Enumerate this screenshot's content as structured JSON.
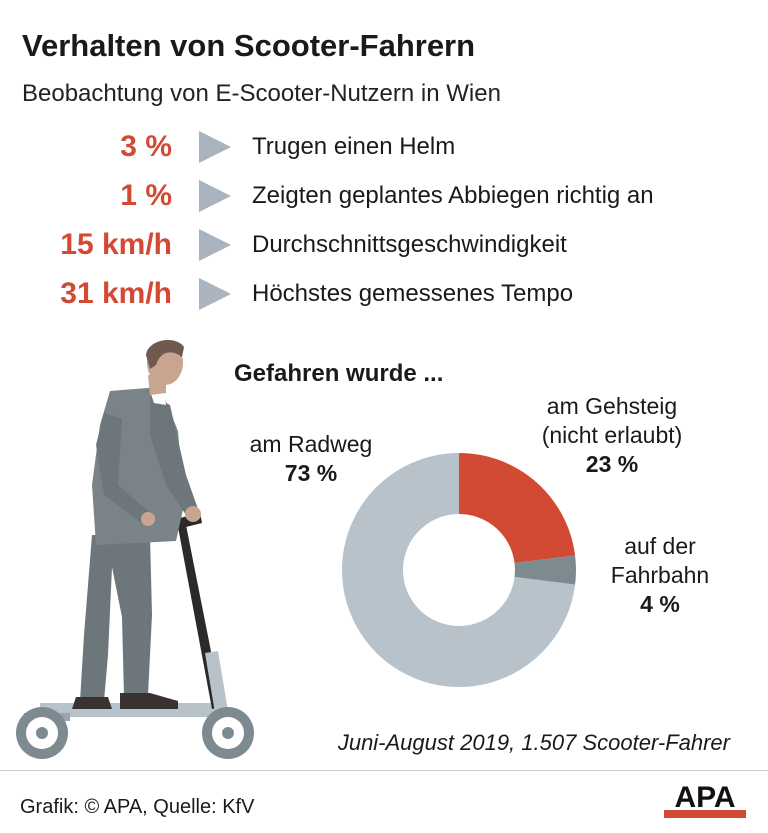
{
  "title": "Verhalten von Scooter-Fahrern",
  "subtitle": "Beobachtung von E-Scooter-Nutzern in Wien",
  "stats": [
    {
      "value": "3 %",
      "label": "Trugen einen Helm"
    },
    {
      "value": "1 %",
      "label": "Zeigten geplantes Abbiegen richtig an"
    },
    {
      "value": "15 km/h",
      "label": "Durchschnittsgeschwindigkeit"
    },
    {
      "value": "31 km/h",
      "label": "Höchstes gemessenes Tempo"
    }
  ],
  "chart_data": {
    "type": "pie",
    "title": "Gefahren wurde ...",
    "slices": [
      {
        "label_lines": [
          "am Gehsteig",
          "(nicht erlaubt)"
        ],
        "value": 23,
        "value_label": "23 %",
        "color": "#d24a33"
      },
      {
        "label_lines": [
          "auf der",
          "Fahrbahn"
        ],
        "value": 4,
        "value_label": "4 %",
        "color": "#7d8a8f"
      },
      {
        "label_lines": [
          "am Radweg"
        ],
        "value": 73,
        "value_label": "73 %",
        "color": "#b8c2ca"
      }
    ]
  },
  "period": "Juni-August 2019, 1.507 Scooter-Fahrer",
  "source": "Grafik: © APA, Quelle: KfV",
  "logo_text": "APA",
  "colors": {
    "accent": "#d24a33",
    "arrow": "#a9b4be",
    "suit": "#7a8388"
  }
}
